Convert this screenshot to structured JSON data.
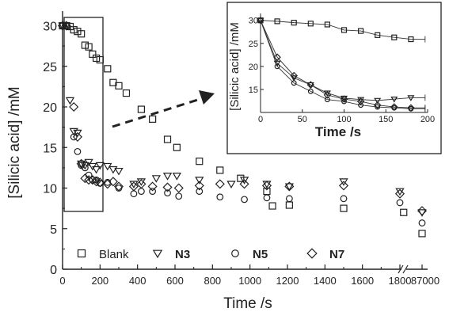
{
  "chart_data": {
    "type": "scatter",
    "xlabel": "Time /s",
    "ylabel": "[Silicic acid] /mM",
    "ylim": [
      0,
      32
    ],
    "y_ticks": [
      0,
      5,
      10,
      15,
      20,
      25,
      30
    ],
    "x_ticks": [
      0,
      200,
      400,
      600,
      800,
      1000,
      1200,
      1400,
      1600,
      1800
    ],
    "x_break_tick": "87000",
    "legend": [
      "Blank",
      "N3",
      "N5",
      "N7"
    ],
    "legend_placement": "bottom-left",
    "series": [
      {
        "name": "Blank",
        "marker": "square",
        "points": [
          [
            0,
            30
          ],
          [
            20,
            30
          ],
          [
            40,
            29.9
          ],
          [
            60,
            29.5
          ],
          [
            80,
            29.3
          ],
          [
            100,
            29
          ],
          [
            120,
            27.6
          ],
          [
            140,
            27.4
          ],
          [
            160,
            26.5
          ],
          [
            180,
            26
          ],
          [
            200,
            25.8
          ],
          [
            240,
            24.7
          ],
          [
            270,
            23
          ],
          [
            300,
            22.6
          ],
          [
            340,
            21.7
          ],
          [
            420,
            19.7
          ],
          [
            480,
            18.5
          ],
          [
            560,
            16
          ],
          [
            610,
            15
          ],
          [
            730,
            13.3
          ],
          [
            840,
            12.2
          ],
          [
            950,
            11.2
          ],
          [
            1090,
            9.6
          ],
          [
            1120,
            7.8
          ],
          [
            1210,
            7.9
          ],
          [
            1500,
            7.5
          ],
          [
            1820,
            7
          ],
          [
            "87000",
            4.4
          ]
        ]
      },
      {
        "name": "N3",
        "marker": "triangle-down",
        "points": [
          [
            0,
            30
          ],
          [
            20,
            30
          ],
          [
            40,
            20.8
          ],
          [
            60,
            17
          ],
          [
            80,
            16.8
          ],
          [
            100,
            13
          ],
          [
            120,
            12.8
          ],
          [
            140,
            13.2
          ],
          [
            160,
            12.7
          ],
          [
            180,
            12.3
          ],
          [
            200,
            12.8
          ],
          [
            240,
            12.7
          ],
          [
            270,
            12.3
          ],
          [
            300,
            12.1
          ],
          [
            380,
            10.5
          ],
          [
            420,
            10.8
          ],
          [
            500,
            11.2
          ],
          [
            560,
            11.5
          ],
          [
            610,
            11.5
          ],
          [
            730,
            11
          ],
          [
            900,
            10.5
          ],
          [
            970,
            11
          ],
          [
            1090,
            10.5
          ],
          [
            1210,
            10.2
          ],
          [
            1500,
            10.8
          ],
          [
            1800,
            9.6
          ],
          [
            "87000",
            7
          ]
        ]
      },
      {
        "name": "N5",
        "marker": "circle",
        "points": [
          [
            0,
            30
          ],
          [
            20,
            30
          ],
          [
            60,
            16.3
          ],
          [
            80,
            14.5
          ],
          [
            100,
            12.8
          ],
          [
            120,
            12.5
          ],
          [
            140,
            11.6
          ],
          [
            160,
            11
          ],
          [
            180,
            11
          ],
          [
            200,
            10.6
          ],
          [
            240,
            10.7
          ],
          [
            300,
            10
          ],
          [
            380,
            9.3
          ],
          [
            420,
            9.6
          ],
          [
            480,
            9.6
          ],
          [
            560,
            9.4
          ],
          [
            620,
            9
          ],
          [
            730,
            9.6
          ],
          [
            840,
            8.9
          ],
          [
            970,
            8.6
          ],
          [
            1090,
            8.8
          ],
          [
            1210,
            8.7
          ],
          [
            1500,
            8.7
          ],
          [
            1800,
            8.2
          ],
          [
            "87000",
            5.7
          ]
        ]
      },
      {
        "name": "N7",
        "marker": "diamond",
        "points": [
          [
            0,
            30
          ],
          [
            20,
            30
          ],
          [
            60,
            20
          ],
          [
            80,
            16.3
          ],
          [
            100,
            13
          ],
          [
            120,
            11.2
          ],
          [
            140,
            11
          ],
          [
            160,
            11
          ],
          [
            180,
            10.8
          ],
          [
            200,
            10.7
          ],
          [
            240,
            10.5
          ],
          [
            270,
            10.8
          ],
          [
            300,
            10.2
          ],
          [
            380,
            10.2
          ],
          [
            420,
            10.5
          ],
          [
            480,
            10.2
          ],
          [
            560,
            10.1
          ],
          [
            620,
            10
          ],
          [
            730,
            10.3
          ],
          [
            840,
            10.5
          ],
          [
            970,
            10.5
          ],
          [
            1090,
            10.3
          ],
          [
            1210,
            10.2
          ],
          [
            1500,
            10.3
          ],
          [
            1800,
            9.3
          ],
          [
            "87000",
            7.2
          ]
        ]
      }
    ],
    "inset": {
      "xlabel": "Time /s",
      "ylabel": "[Silicic acid] /mM",
      "xlim": [
        0,
        200
      ],
      "ylim": [
        10,
        31.5
      ],
      "x_ticks": [
        0,
        50,
        100,
        150,
        200
      ],
      "y_ticks": [
        15,
        20,
        25,
        30
      ],
      "series": [
        {
          "name": "Blank",
          "marker": "square",
          "points": [
            [
              0,
              30
            ],
            [
              20,
              29.8
            ],
            [
              40,
              29.5
            ],
            [
              60,
              29.3
            ],
            [
              80,
              29.1
            ],
            [
              100,
              27.9
            ],
            [
              120,
              27.7
            ],
            [
              140,
              26.8
            ],
            [
              160,
              26.3
            ],
            [
              180,
              25.9
            ]
          ]
        },
        {
          "name": "N3",
          "marker": "triangle-down",
          "points": [
            [
              0,
              30
            ],
            [
              20,
              20.7
            ],
            [
              40,
              17.5
            ],
            [
              60,
              16
            ],
            [
              80,
              14.2
            ],
            [
              100,
              13.1
            ],
            [
              120,
              12.8
            ],
            [
              140,
              12.6
            ],
            [
              160,
              12.9
            ],
            [
              180,
              13.2
            ]
          ]
        },
        {
          "name": "N5",
          "marker": "circle",
          "points": [
            [
              0,
              30
            ],
            [
              20,
              20
            ],
            [
              40,
              16.4
            ],
            [
              60,
              14.6
            ],
            [
              80,
              12.8
            ],
            [
              100,
              12.4
            ],
            [
              120,
              11.6
            ],
            [
              140,
              11.2
            ],
            [
              160,
              11
            ],
            [
              180,
              10.8
            ]
          ]
        },
        {
          "name": "N7",
          "marker": "diamond",
          "points": [
            [
              0,
              30
            ],
            [
              20,
              22
            ],
            [
              40,
              18
            ],
            [
              60,
              16
            ],
            [
              80,
              13.8
            ],
            [
              100,
              12.9
            ],
            [
              120,
              12.4
            ],
            [
              140,
              11.6
            ],
            [
              160,
              11.2
            ],
            [
              180,
              11
            ]
          ]
        }
      ]
    }
  }
}
